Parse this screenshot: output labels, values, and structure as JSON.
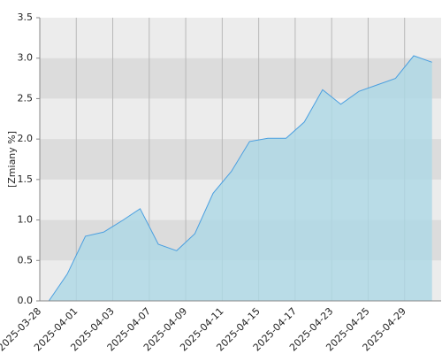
{
  "chart_data": {
    "type": "area",
    "y_label": "[Zmiany %]",
    "categories": [
      "2025-03-28",
      null,
      "2025-04-01",
      null,
      "2025-04-03",
      null,
      "2025-04-07",
      null,
      "2025-04-09",
      null,
      "2025-04-11",
      null,
      "2025-04-15",
      null,
      "2025-04-17",
      null,
      "2025-04-23",
      null,
      "2025-04-25",
      null,
      "2025-04-29",
      null
    ],
    "values": [
      0,
      0.33,
      0.8,
      0.85,
      0.99,
      1.14,
      0.7,
      0.62,
      0.83,
      1.33,
      1.6,
      1.97,
      2.01,
      2.01,
      2.21,
      2.61,
      2.43,
      2.59,
      2.67,
      2.75,
      3.03,
      2.95
    ],
    "color": "#4a9fe0",
    "fill_color": "#add8e6",
    "ylim": [
      0,
      3.5
    ],
    "yticks": [
      {
        "value": 0,
        "label": "0.0"
      },
      0.5,
      {
        "value": 1,
        "label": "1.0"
      },
      1.5,
      {
        "value": 2,
        "label": "2.0"
      },
      2.5,
      {
        "value": 3,
        "label": "3.0"
      },
      3.5
    ],
    "grid": true
  }
}
